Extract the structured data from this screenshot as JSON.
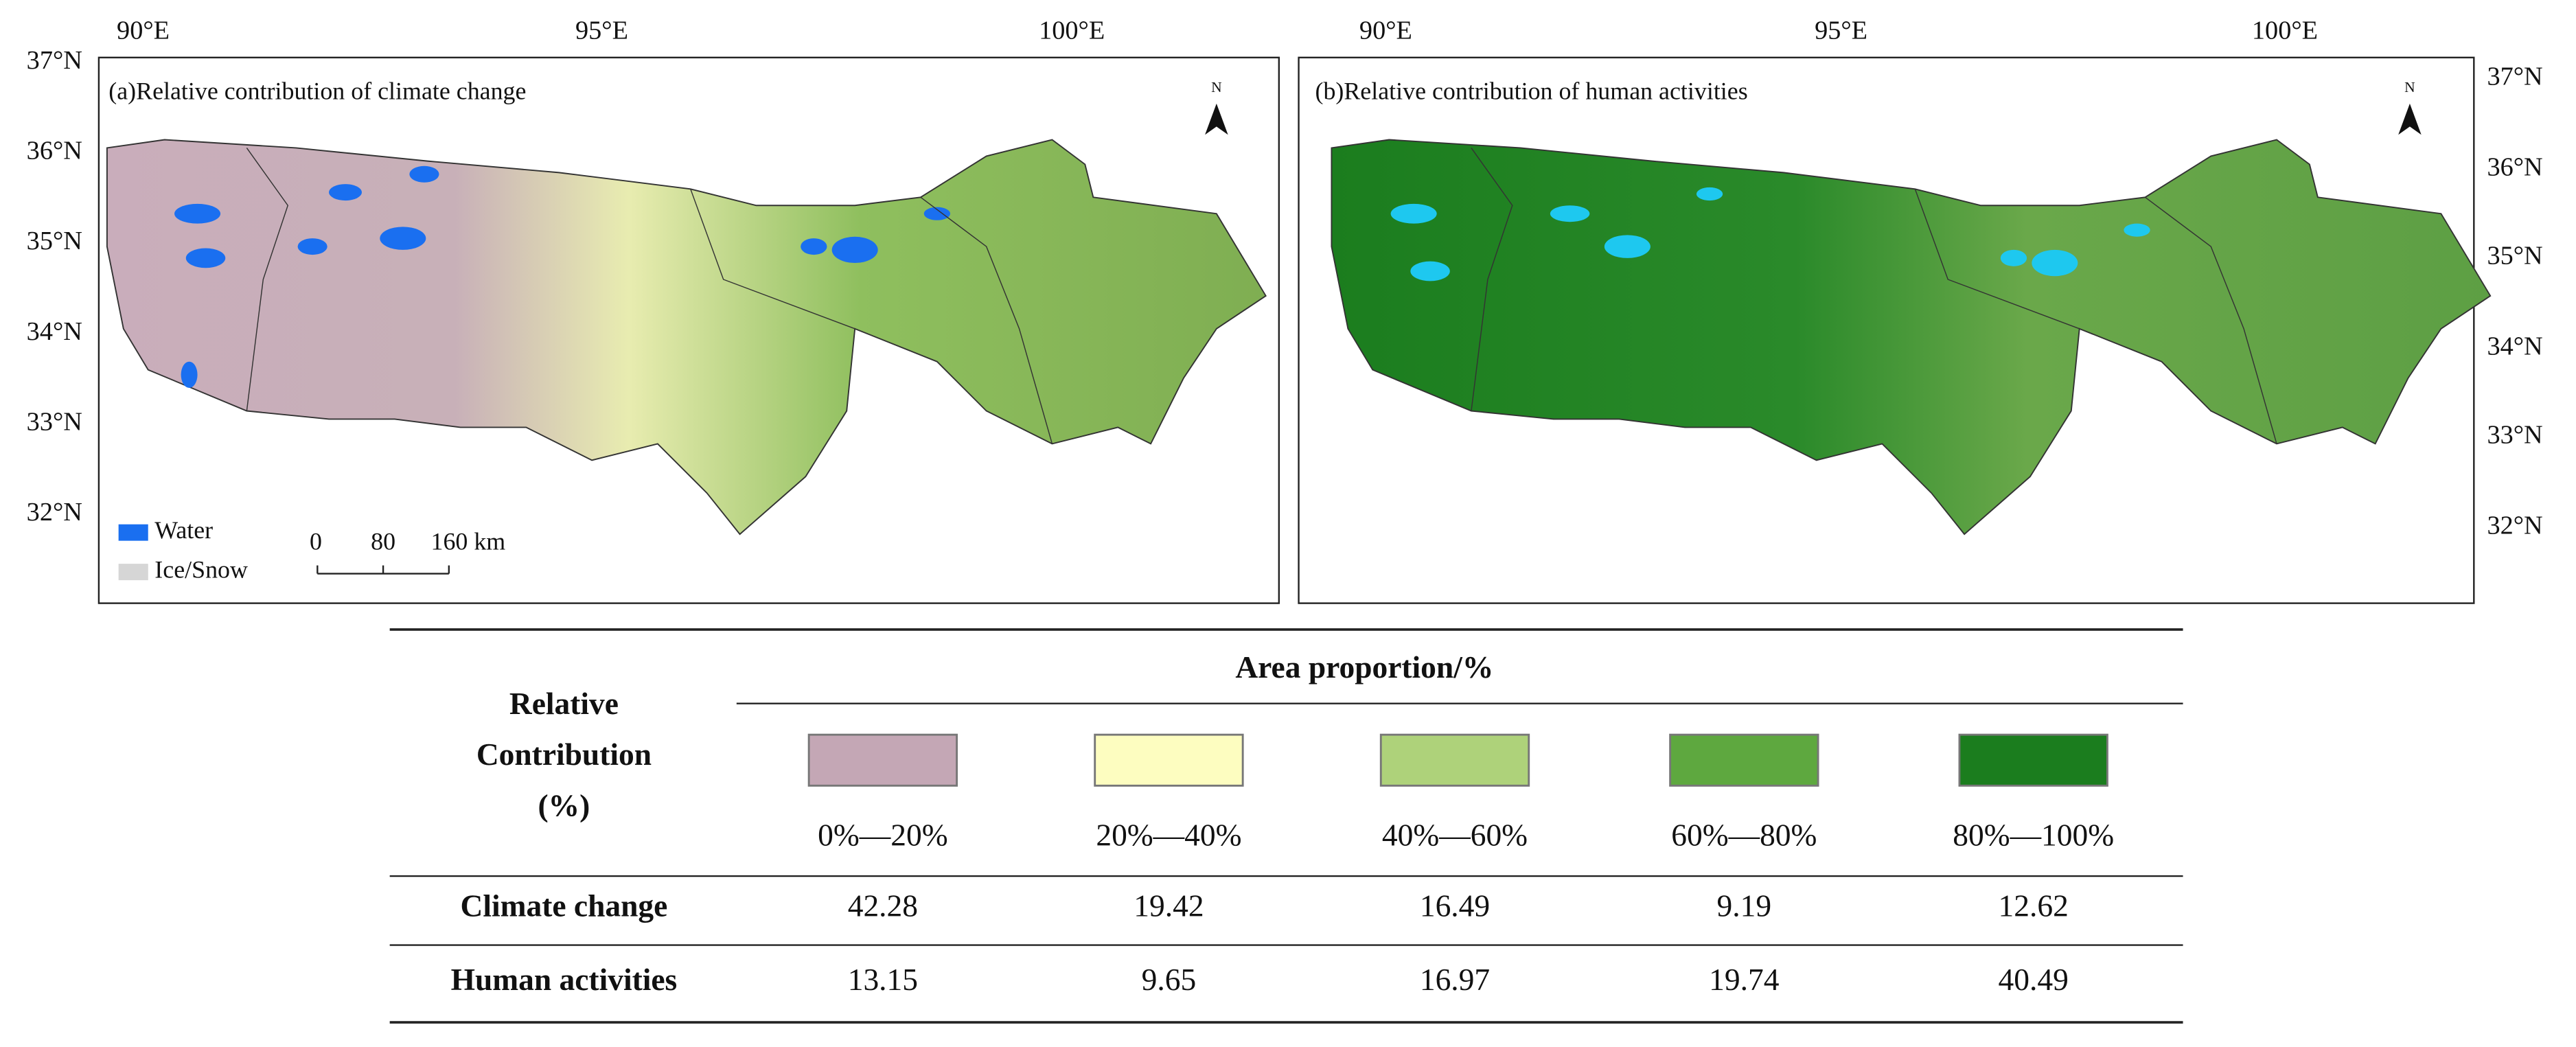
{
  "panels": [
    {
      "title": "(a)Relative contribution of climate change",
      "lon_labels": [
        "90°E",
        "95°E",
        "100°E"
      ],
      "lat_labels": [
        "37°N",
        "36°N",
        "35°N",
        "34°N",
        "33°N",
        "32°N"
      ]
    },
    {
      "title": "(b)Relative contribution of human activities",
      "lon_labels": [
        "90°E",
        "95°E",
        "100°E"
      ],
      "lat_labels": [
        "37°N",
        "36°N",
        "35°N",
        "34°N",
        "33°N",
        "32°N"
      ]
    }
  ],
  "north_label": "N",
  "map_legend": [
    {
      "label": "Water",
      "color": "#1a6ff0"
    },
    {
      "label": "Ice/Snow",
      "color": "#d6d6d6"
    }
  ],
  "scale_bar": [
    "0",
    "80",
    "160 km"
  ],
  "table": {
    "row_header": [
      "Relative",
      "Contribution",
      "(%)"
    ],
    "header": "Area proportion/%",
    "classes": [
      {
        "label": "0%—20%",
        "color": "#c4a7b5"
      },
      {
        "label": "20%—40%",
        "color": "#fdfdc0"
      },
      {
        "label": "40%—60%",
        "color": "#aed27a"
      },
      {
        "label": "60%—80%",
        "color": "#5ea83f"
      },
      {
        "label": "80%—100%",
        "color": "#1b7d1e"
      }
    ],
    "rows": [
      {
        "name": "Climate change",
        "values": [
          42.28,
          19.42,
          16.49,
          9.19,
          12.62
        ]
      },
      {
        "name": "Human activities",
        "values": [
          13.15,
          9.65,
          16.97,
          19.74,
          40.49
        ]
      }
    ]
  }
}
